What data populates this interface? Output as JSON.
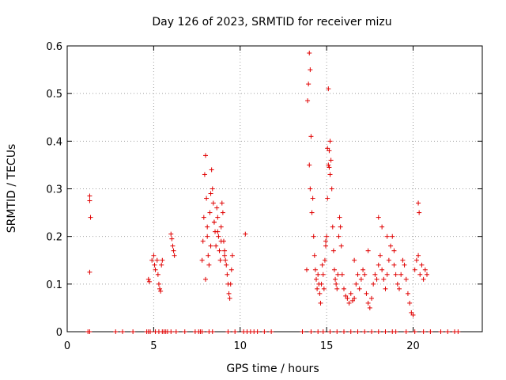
{
  "chart_data": {
    "type": "scatter",
    "title": "Day 126 of 2023, SRMTID for receiver mizu",
    "xlabel": "GPS time / hours",
    "ylabel": "SRMTID / TECUs",
    "xlim": [
      0,
      24
    ],
    "ylim": [
      0,
      0.6
    ],
    "xticks": [
      0,
      5,
      10,
      15,
      20
    ],
    "xtick_labels": [
      "0",
      "5",
      "10",
      "15",
      "20"
    ],
    "yticks": [
      0,
      0.1,
      0.2,
      0.3,
      0.4,
      0.5,
      0.6
    ],
    "ytick_labels": [
      "0",
      "0.1",
      "0.2",
      "0.3",
      "0.4",
      "0.5",
      "0.6"
    ],
    "grid": true,
    "marker": "+",
    "color": "#e00000",
    "series": [
      {
        "name": "SRMTID",
        "x": [
          1.3,
          1.3,
          1.35,
          1.3,
          4.7,
          4.75,
          4.9,
          5.0,
          5.05,
          5.1,
          5.2,
          5.25,
          5.3,
          5.35,
          5.4,
          5.45,
          5.5,
          6.0,
          6.05,
          6.1,
          6.15,
          6.2,
          7.8,
          7.85,
          7.9,
          7.95,
          8.0,
          8.05,
          8.1,
          8.15,
          8.2,
          8.25,
          8.3,
          8.35,
          8.4,
          8.45,
          8.5,
          8.55,
          8.6,
          8.65,
          8.7,
          8.75,
          8.8,
          8.85,
          8.9,
          8.95,
          9.0,
          9.05,
          9.1,
          9.15,
          9.2,
          9.25,
          9.3,
          9.35,
          9.4,
          9.45,
          9.5,
          9.55,
          8.0,
          8.1,
          8.3,
          8.5,
          8.7,
          8.9,
          9.1,
          10.3,
          13.85,
          13.9,
          13.95,
          14.0,
          14.05,
          14.1,
          14.15,
          14.2,
          14.25,
          14.3,
          14.35,
          14.4,
          14.45,
          14.5,
          14.55,
          14.6,
          14.65,
          14.7,
          14.75,
          14.8,
          14.85,
          14.9,
          14.95,
          15.0,
          15.05,
          15.1,
          15.15,
          15.2,
          15.25,
          15.3,
          15.35,
          15.4,
          15.45,
          15.5,
          15.55,
          15.6,
          15.65,
          15.7,
          15.75,
          15.8,
          15.85,
          15.9,
          14.0,
          14.05,
          15.1,
          15.15,
          15.2,
          15.05,
          14.95,
          16.0,
          16.1,
          16.2,
          16.3,
          16.4,
          16.5,
          16.6,
          16.7,
          16.8,
          16.9,
          17.0,
          17.1,
          17.2,
          17.3,
          17.4,
          17.5,
          17.6,
          17.7,
          17.8,
          17.9,
          18.0,
          18.1,
          18.2,
          18.3,
          18.4,
          18.5,
          18.6,
          18.7,
          18.8,
          18.9,
          19.0,
          19.1,
          19.2,
          19.3,
          19.4,
          19.5,
          19.6,
          19.7,
          19.8,
          19.9,
          20.0,
          20.1,
          20.2,
          20.3,
          20.4,
          20.5,
          20.6,
          20.7,
          20.8,
          18.0,
          18.2,
          18.5,
          18.9,
          20.3,
          20.35,
          17.4,
          16.6,
          1.2,
          1.3,
          2.8,
          3.2,
          3.8,
          4.6,
          4.7,
          4.8,
          5.1,
          5.3,
          5.5,
          5.6,
          5.7,
          5.8,
          6.0,
          6.3,
          6.8,
          7.4,
          7.6,
          7.7,
          7.8,
          8.2,
          8.4,
          9.3,
          9.7,
          10.2,
          10.4,
          10.6,
          10.8,
          11.0,
          11.4,
          11.8,
          13.6,
          14.1,
          14.5,
          14.8,
          15.2,
          15.6,
          16.0,
          16.4,
          16.8,
          17.2,
          17.6,
          18.0,
          18.4,
          18.8,
          19.0,
          19.6,
          20.1,
          20.6,
          21.0,
          21.6,
          22.0,
          22.4,
          22.6
        ],
        "y": [
          0.285,
          0.275,
          0.24,
          0.125,
          0.11,
          0.105,
          0.15,
          0.16,
          0.14,
          0.13,
          0.15,
          0.12,
          0.1,
          0.09,
          0.085,
          0.14,
          0.15,
          0.205,
          0.195,
          0.18,
          0.17,
          0.16,
          0.15,
          0.19,
          0.24,
          0.33,
          0.37,
          0.28,
          0.22,
          0.16,
          0.14,
          0.25,
          0.29,
          0.34,
          0.3,
          0.27,
          0.23,
          0.21,
          0.18,
          0.26,
          0.24,
          0.2,
          0.17,
          0.15,
          0.22,
          0.27,
          0.25,
          0.19,
          0.16,
          0.15,
          0.14,
          0.12,
          0.1,
          0.08,
          0.07,
          0.1,
          0.13,
          0.16,
          0.11,
          0.2,
          0.18,
          0.23,
          0.21,
          0.19,
          0.17,
          0.205,
          0.13,
          0.485,
          0.52,
          0.585,
          0.55,
          0.41,
          0.25,
          0.28,
          0.2,
          0.16,
          0.13,
          0.11,
          0.09,
          0.12,
          0.1,
          0.08,
          0.06,
          0.1,
          0.14,
          0.12,
          0.09,
          0.15,
          0.18,
          0.2,
          0.28,
          0.35,
          0.38,
          0.4,
          0.36,
          0.3,
          0.22,
          0.17,
          0.13,
          0.11,
          0.1,
          0.09,
          0.12,
          0.2,
          0.24,
          0.22,
          0.18,
          0.12,
          0.35,
          0.3,
          0.51,
          0.345,
          0.33,
          0.385,
          0.19,
          0.09,
          0.075,
          0.07,
          0.06,
          0.08,
          0.065,
          0.07,
          0.1,
          0.12,
          0.09,
          0.11,
          0.13,
          0.12,
          0.08,
          0.06,
          0.05,
          0.07,
          0.1,
          0.12,
          0.11,
          0.14,
          0.16,
          0.13,
          0.11,
          0.09,
          0.12,
          0.15,
          0.18,
          0.2,
          0.14,
          0.12,
          0.1,
          0.09,
          0.12,
          0.15,
          0.14,
          0.11,
          0.08,
          0.06,
          0.04,
          0.035,
          0.13,
          0.15,
          0.16,
          0.12,
          0.14,
          0.11,
          0.13,
          0.12,
          0.24,
          0.22,
          0.2,
          0.17,
          0.27,
          0.25,
          0.17,
          0.15,
          0,
          0,
          0,
          0,
          0,
          0,
          0,
          0,
          0,
          0,
          0,
          0,
          0,
          0,
          0,
          0,
          0,
          0,
          0,
          0,
          0,
          0,
          0,
          0,
          0,
          0,
          0,
          0,
          0,
          0,
          0,
          0,
          0,
          0,
          0,
          0,
          0,
          0,
          0,
          0,
          0,
          0,
          0,
          0,
          0,
          0,
          0,
          0,
          0,
          0,
          0,
          0,
          0,
          0,
          0
        ]
      }
    ]
  }
}
